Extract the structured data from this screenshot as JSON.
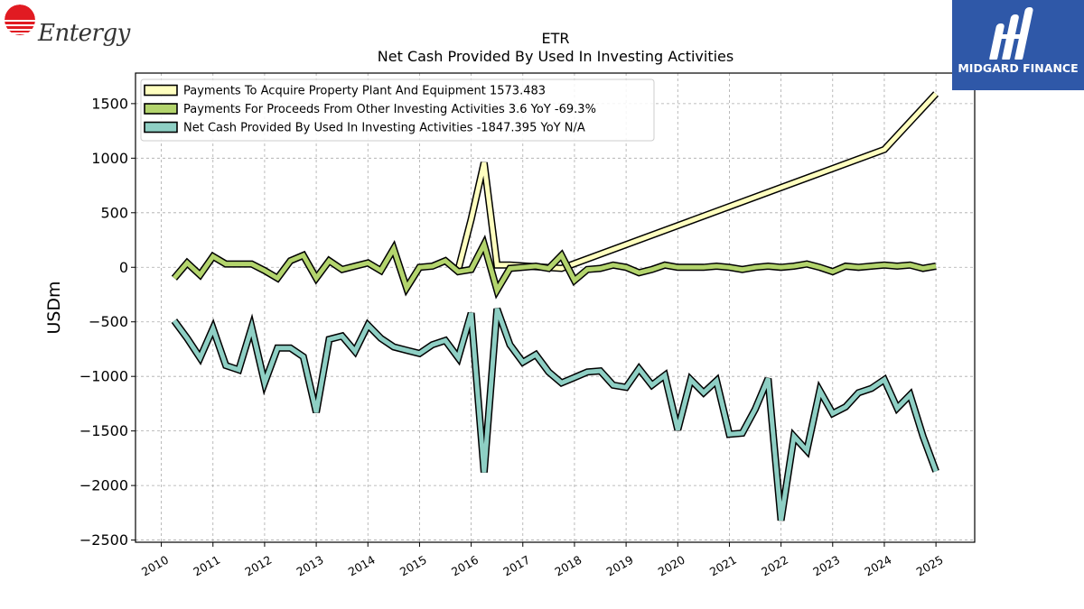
{
  "brand_left": {
    "name": "Entergy",
    "color": "#e11b22"
  },
  "brand_right": {
    "name": "MIDGARD FINANCE",
    "color": "#2f58a8"
  },
  "chart_data": {
    "type": "line",
    "title": "ETR",
    "subtitle": "Net Cash Provided By Used In Investing Activities",
    "ylabel": "USDm",
    "xlabel": "",
    "x_ticks": [
      "2010",
      "2011",
      "2012",
      "2013",
      "2014",
      "2015",
      "2016",
      "2017",
      "2018",
      "2019",
      "2020",
      "2021",
      "2022",
      "2023",
      "2024",
      "2025"
    ],
    "xlim": [
      2009.5,
      2025.75
    ],
    "ylim": [
      -2520,
      1780
    ],
    "y_ticks": [
      1500,
      1000,
      500,
      0,
      -500,
      -1000,
      -1500,
      -2000,
      -2500
    ],
    "y_tick_labels": [
      "1500",
      "1000",
      "500",
      "0",
      "−500",
      "−1000",
      "−1500",
      "−2000",
      "−2500"
    ],
    "grid": true,
    "legend_position": "top-left",
    "series": [
      {
        "name": "Payments To Acquire Property Plant And Equipment",
        "legend_label": "Payments To Acquire Property Plant And Equipment  1573.483",
        "color": "#ffffbf",
        "points": [
          [
            2015.75,
            -20
          ],
          [
            2016.0,
            440
          ],
          [
            2016.25,
            960
          ],
          [
            2016.5,
            20
          ],
          [
            2016.75,
            20
          ],
          [
            2017.75,
            -10
          ],
          [
            2024.0,
            1080
          ],
          [
            2025.0,
            1590
          ]
        ]
      },
      {
        "name": "Payments For Proceeds From Other Investing Activities",
        "legend_label": "Payments For Proceeds From Other Investing Activities  3.6 YoY -69.3%",
        "color": "#b3d46d",
        "points": [
          [
            2010.25,
            -100
          ],
          [
            2010.5,
            40
          ],
          [
            2010.75,
            -70
          ],
          [
            2011.0,
            100
          ],
          [
            2011.25,
            30
          ],
          [
            2011.5,
            30
          ],
          [
            2011.75,
            30
          ],
          [
            2012.0,
            -30
          ],
          [
            2012.25,
            -100
          ],
          [
            2012.5,
            60
          ],
          [
            2012.75,
            110
          ],
          [
            2013.0,
            -100
          ],
          [
            2013.25,
            60
          ],
          [
            2013.5,
            -20
          ],
          [
            2013.75,
            10
          ],
          [
            2014.0,
            40
          ],
          [
            2014.25,
            -30
          ],
          [
            2014.5,
            170
          ],
          [
            2014.75,
            -190
          ],
          [
            2015.0,
            0
          ],
          [
            2015.25,
            10
          ],
          [
            2015.5,
            60
          ],
          [
            2015.75,
            -40
          ],
          [
            2016.0,
            -20
          ],
          [
            2016.25,
            210
          ],
          [
            2016.5,
            -210
          ],
          [
            2016.75,
            -10
          ],
          [
            2017.0,
            0
          ],
          [
            2017.25,
            10
          ],
          [
            2017.5,
            -10
          ],
          [
            2017.75,
            110
          ],
          [
            2018.0,
            -120
          ],
          [
            2018.25,
            -20
          ],
          [
            2018.5,
            -10
          ],
          [
            2018.75,
            20
          ],
          [
            2019.0,
            0
          ],
          [
            2019.25,
            -50
          ],
          [
            2019.5,
            -20
          ],
          [
            2019.75,
            20
          ],
          [
            2020.0,
            0
          ],
          [
            2020.25,
            0
          ],
          [
            2020.5,
            0
          ],
          [
            2020.75,
            10
          ],
          [
            2021.0,
            0
          ],
          [
            2021.25,
            -20
          ],
          [
            2021.5,
            0
          ],
          [
            2021.75,
            10
          ],
          [
            2022.0,
            0
          ],
          [
            2022.25,
            10
          ],
          [
            2022.5,
            30
          ],
          [
            2022.75,
            0
          ],
          [
            2023.0,
            -40
          ],
          [
            2023.25,
            10
          ],
          [
            2023.5,
            0
          ],
          [
            2023.75,
            10
          ],
          [
            2024.0,
            20
          ],
          [
            2024.25,
            10
          ],
          [
            2024.5,
            20
          ],
          [
            2024.75,
            -10
          ],
          [
            2025.0,
            10
          ]
        ]
      },
      {
        "name": "Net Cash Provided By Used In Investing Activities",
        "legend_label": "Net Cash Provided By Used In Investing Activities  -1847.395 YoY N/A",
        "color": "#8ecfc4",
        "points": [
          [
            2010.25,
            -490
          ],
          [
            2010.5,
            -650
          ],
          [
            2010.75,
            -830
          ],
          [
            2011.0,
            -560
          ],
          [
            2011.25,
            -900
          ],
          [
            2011.5,
            -940
          ],
          [
            2011.75,
            -550
          ],
          [
            2012.0,
            -1060
          ],
          [
            2012.25,
            -740
          ],
          [
            2012.5,
            -740
          ],
          [
            2012.75,
            -820
          ],
          [
            2013.0,
            -1330
          ],
          [
            2013.25,
            -660
          ],
          [
            2013.5,
            -630
          ],
          [
            2013.75,
            -770
          ],
          [
            2014.0,
            -530
          ],
          [
            2014.25,
            -650
          ],
          [
            2014.5,
            -730
          ],
          [
            2014.75,
            -760
          ],
          [
            2015.0,
            -790
          ],
          [
            2015.25,
            -710
          ],
          [
            2015.5,
            -670
          ],
          [
            2015.75,
            -830
          ],
          [
            2016.0,
            -420
          ],
          [
            2016.25,
            -1880
          ],
          [
            2016.5,
            -380
          ],
          [
            2016.75,
            -710
          ],
          [
            2017.0,
            -870
          ],
          [
            2017.25,
            -800
          ],
          [
            2017.5,
            -960
          ],
          [
            2017.75,
            -1060
          ],
          [
            2018.0,
            -1010
          ],
          [
            2018.25,
            -960
          ],
          [
            2018.5,
            -950
          ],
          [
            2018.75,
            -1080
          ],
          [
            2019.0,
            -1100
          ],
          [
            2019.25,
            -930
          ],
          [
            2019.5,
            -1080
          ],
          [
            2019.75,
            -990
          ],
          [
            2020.0,
            -1490
          ],
          [
            2020.25,
            -1030
          ],
          [
            2020.5,
            -1150
          ],
          [
            2020.75,
            -1040
          ],
          [
            2021.0,
            -1530
          ],
          [
            2021.25,
            -1520
          ],
          [
            2021.5,
            -1300
          ],
          [
            2021.75,
            -1020
          ],
          [
            2022.0,
            -2320
          ],
          [
            2022.25,
            -1550
          ],
          [
            2022.5,
            -1680
          ],
          [
            2022.75,
            -1130
          ],
          [
            2023.0,
            -1340
          ],
          [
            2023.25,
            -1280
          ],
          [
            2023.5,
            -1150
          ],
          [
            2023.75,
            -1110
          ],
          [
            2024.0,
            -1030
          ],
          [
            2024.25,
            -1290
          ],
          [
            2024.5,
            -1170
          ],
          [
            2024.75,
            -1550
          ],
          [
            2025.0,
            -1870
          ]
        ]
      }
    ]
  }
}
